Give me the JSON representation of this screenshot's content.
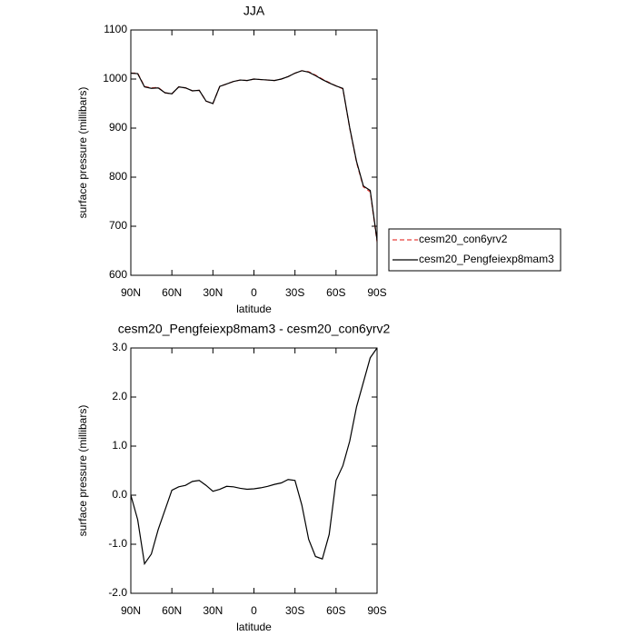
{
  "chart_data": [
    {
      "type": "line",
      "title": "JJA",
      "xlabel": "latitude",
      "ylabel": "surface pressure (millibars)",
      "x": [
        90,
        85,
        80,
        75,
        70,
        65,
        60,
        55,
        50,
        45,
        40,
        35,
        30,
        25,
        20,
        15,
        10,
        5,
        0,
        -5,
        -10,
        -15,
        -20,
        -25,
        -30,
        -35,
        -40,
        -45,
        -50,
        -55,
        -60,
        -65,
        -70,
        -75,
        -80,
        -85,
        -90
      ],
      "series": [
        {
          "name": "cesm20_con6yrv2",
          "color": "#e8413c",
          "line_style": "dashed",
          "values": [
            1012,
            1012,
            985,
            982,
            983,
            972,
            970,
            984,
            982,
            976,
            977,
            955,
            950,
            985,
            990,
            995,
            998,
            997,
            1000,
            999,
            998,
            997,
            1000,
            1005,
            1012,
            1017,
            1015,
            1008,
            1000,
            993,
            986,
            980,
            900,
            830,
            780,
            770,
            668
          ]
        },
        {
          "name": "cesm20_Pengfeiexp8mam3",
          "color": "#000000",
          "line_style": "solid",
          "values": [
            1012,
            1011,
            984,
            981,
            982,
            972,
            970,
            984,
            982,
            976,
            977,
            955,
            950,
            985,
            990,
            995,
            998,
            997,
            1000,
            999,
            998,
            997,
            1000,
            1005,
            1012,
            1017,
            1014,
            1007,
            999,
            992,
            986,
            981,
            901,
            832,
            782,
            773,
            671
          ]
        }
      ],
      "xlim": [
        90,
        -90
      ],
      "xticks": [
        {
          "value": 90,
          "label": "90N"
        },
        {
          "value": 60,
          "label": "60N"
        },
        {
          "value": 30,
          "label": "30N"
        },
        0,
        {
          "value": -30,
          "label": "30S"
        },
        {
          "value": -60,
          "label": "60S"
        },
        {
          "value": -90,
          "label": "90S"
        }
      ],
      "ylim": [
        600,
        1100
      ],
      "yticks": [
        600,
        700,
        800,
        900,
        1000,
        1100
      ],
      "legend": "right"
    },
    {
      "type": "line",
      "title": "cesm20_Pengfeiexp8mam3 - cesm20_con6yrv2",
      "xlabel": "latitude",
      "ylabel": "surface pressure (millibars)",
      "x": [
        90,
        85,
        80,
        75,
        70,
        65,
        60,
        55,
        50,
        45,
        40,
        35,
        30,
        25,
        20,
        15,
        10,
        5,
        0,
        -5,
        -10,
        -15,
        -20,
        -25,
        -30,
        -35,
        -40,
        -45,
        -50,
        -55,
        -60,
        -65,
        -70,
        -75,
        -80,
        -85,
        -90
      ],
      "series": [
        {
          "color": "#000000",
          "line_style": "solid",
          "values": [
            0.0,
            -0.5,
            -1.4,
            -1.2,
            -0.7,
            -0.3,
            0.1,
            0.17,
            0.2,
            0.28,
            0.3,
            0.2,
            0.08,
            0.12,
            0.18,
            0.17,
            0.14,
            0.12,
            0.13,
            0.15,
            0.18,
            0.22,
            0.25,
            0.32,
            0.3,
            -0.2,
            -0.9,
            -1.25,
            -1.3,
            -0.8,
            0.3,
            0.6,
            1.1,
            1.8,
            2.3,
            2.8,
            3.0
          ]
        }
      ],
      "xlim": [
        90,
        -90
      ],
      "xticks": [
        {
          "value": 90,
          "label": "90N"
        },
        {
          "value": 60,
          "label": "60N"
        },
        {
          "value": 30,
          "label": "30N"
        },
        0,
        {
          "value": -30,
          "label": "30S"
        },
        {
          "value": -60,
          "label": "60S"
        },
        {
          "value": -90,
          "label": "90S"
        }
      ],
      "ylim": [
        -2,
        3
      ],
      "yticks": [
        {
          "value": -2,
          "label": "-2.0"
        },
        {
          "value": -1,
          "label": "-1.0"
        },
        {
          "value": 0,
          "label": "0.0"
        },
        {
          "value": 1,
          "label": "1.0"
        },
        {
          "value": 2,
          "label": "2.0"
        },
        {
          "value": 3,
          "label": "3.0"
        }
      ]
    }
  ]
}
